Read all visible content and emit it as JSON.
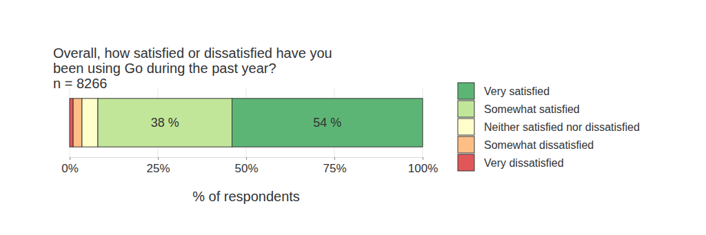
{
  "chart_data": {
    "type": "bar",
    "orientation": "horizontal",
    "stacked": true,
    "title": "Overall, how satisfied or dissatisfied have you\nbeen using Go during the past year?",
    "subtitle": "n = 8266",
    "xlabel": "% of respondents",
    "categories": [
      null
    ],
    "series": [
      {
        "name": "Very dissatisfied",
        "color": "#e15759",
        "values": [
          1
        ]
      },
      {
        "name": "Somewhat dissatisfied",
        "color": "#fdbf86",
        "values": [
          2.5
        ]
      },
      {
        "name": "Neither satisfied nor dissatisfied",
        "color": "#ffffcc",
        "values": [
          4.5
        ]
      },
      {
        "name": "Somewhat satisfied",
        "color": "#c2e699",
        "values": [
          38
        ],
        "value_labels": [
          "38 %"
        ]
      },
      {
        "name": "Very satisfied",
        "color": "#5db575",
        "values": [
          54
        ],
        "value_labels": [
          "54 %"
        ]
      }
    ],
    "xlim": [
      0,
      100
    ],
    "xticks": [
      {
        "value": 0,
        "label": "0%"
      },
      {
        "value": 25,
        "label": "25%"
      },
      {
        "value": 50,
        "label": "50%"
      },
      {
        "value": 75,
        "label": "75%"
      },
      {
        "value": 100,
        "label": "100%"
      }
    ],
    "grid": true,
    "legend": "right",
    "data_labels": true,
    "tick_labels": "x"
  }
}
